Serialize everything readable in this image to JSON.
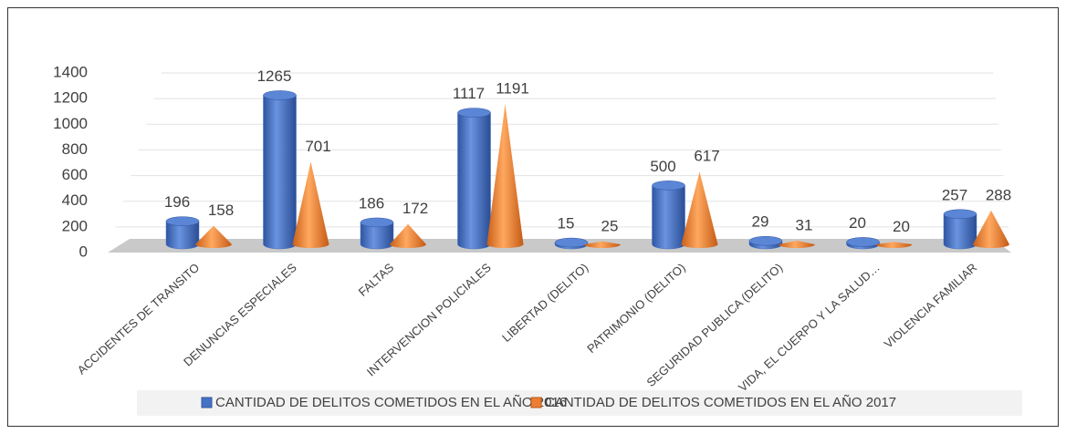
{
  "chart_data": {
    "type": "bar",
    "categories": [
      "ACCIDENTES DE TRANSITO",
      "DENUNCIAS ESPECIALES",
      "FALTAS",
      "INTERVENCION POLICIALES",
      "LIBERTAD (DELITO)",
      "PATRIMONIO (DELITO)",
      "SEGURIDAD PUBLICA (DELITO)",
      "VIDA, EL CUERPO Y LA SALUD…",
      "VIOLENCIA FAMILIAR"
    ],
    "series": [
      {
        "name": "CANTIDAD DE DELITOS COMETIDOS EN EL AÑO 2016",
        "color": "#4472c4",
        "values": [
          196,
          1265,
          186,
          1117,
          15,
          500,
          29,
          20,
          257
        ]
      },
      {
        "name": "CANTIDAD DE DELITOS COMETIDOS EN EL AÑO 2017",
        "color": "#ed7d31",
        "values": [
          158,
          701,
          172,
          1191,
          25,
          617,
          31,
          20,
          288
        ]
      }
    ],
    "ylim": [
      0,
      1400
    ],
    "yticks": [
      0,
      200,
      400,
      600,
      800,
      1000,
      1200,
      1400
    ],
    "grid": true
  }
}
